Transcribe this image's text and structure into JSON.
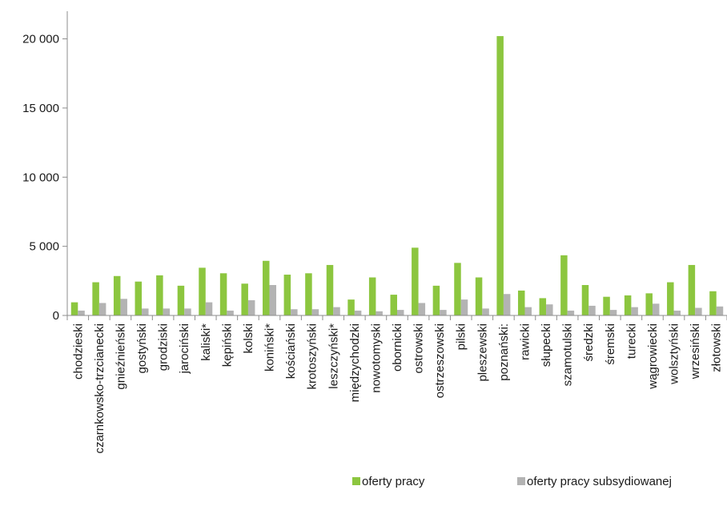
{
  "chart_data": {
    "type": "bar",
    "title": "",
    "xlabel": "",
    "ylabel": "",
    "ylim": [
      0,
      22000
    ],
    "yticks": [
      0,
      5000,
      10000,
      15000,
      20000
    ],
    "ytick_labels": [
      "0",
      "5 000",
      "10 000",
      "15 000",
      "20 000"
    ],
    "grid": false,
    "legend_position": "bottom-right",
    "categories": [
      "chodzieski",
      "czarnkowsko-trzcianecki",
      "gnieźnieński",
      "gostyński",
      "grodziski",
      "jarociński",
      "kaliski*",
      "kępiński",
      "kolski",
      "koniński*",
      "kościański",
      "krotoszyński",
      "leszczyński*",
      "międzychodzki",
      "nowotomyski",
      "obornicki",
      "ostrowski",
      "ostrzeszowski",
      "pilski",
      "pleszewski",
      "poznański:",
      "rawicki",
      "słupecki",
      "szamotulski",
      "średzki",
      "śremski",
      "turecki",
      "wągrowiecki",
      "wolsztyński",
      "wrzesiński",
      "złotowski"
    ],
    "series": [
      {
        "name": "oferty pracy",
        "color": "#8cc63f",
        "values": [
          950,
          2400,
          2850,
          2450,
          2900,
          2150,
          3450,
          3050,
          2300,
          3950,
          2950,
          3050,
          3650,
          1150,
          2750,
          1500,
          4900,
          2150,
          3800,
          2750,
          20200,
          1800,
          1250,
          4350,
          2200,
          1350,
          1450,
          1600,
          2400,
          3650,
          1750
        ]
      },
      {
        "name": "oferty pracy subsydiowanej",
        "color": "#b3b3b3",
        "values": [
          350,
          900,
          1200,
          500,
          500,
          500,
          950,
          350,
          1100,
          2200,
          450,
          450,
          600,
          350,
          300,
          400,
          900,
          400,
          1150,
          500,
          1550,
          600,
          800,
          350,
          700,
          400,
          600,
          850,
          350,
          550,
          650
        ]
      }
    ]
  }
}
